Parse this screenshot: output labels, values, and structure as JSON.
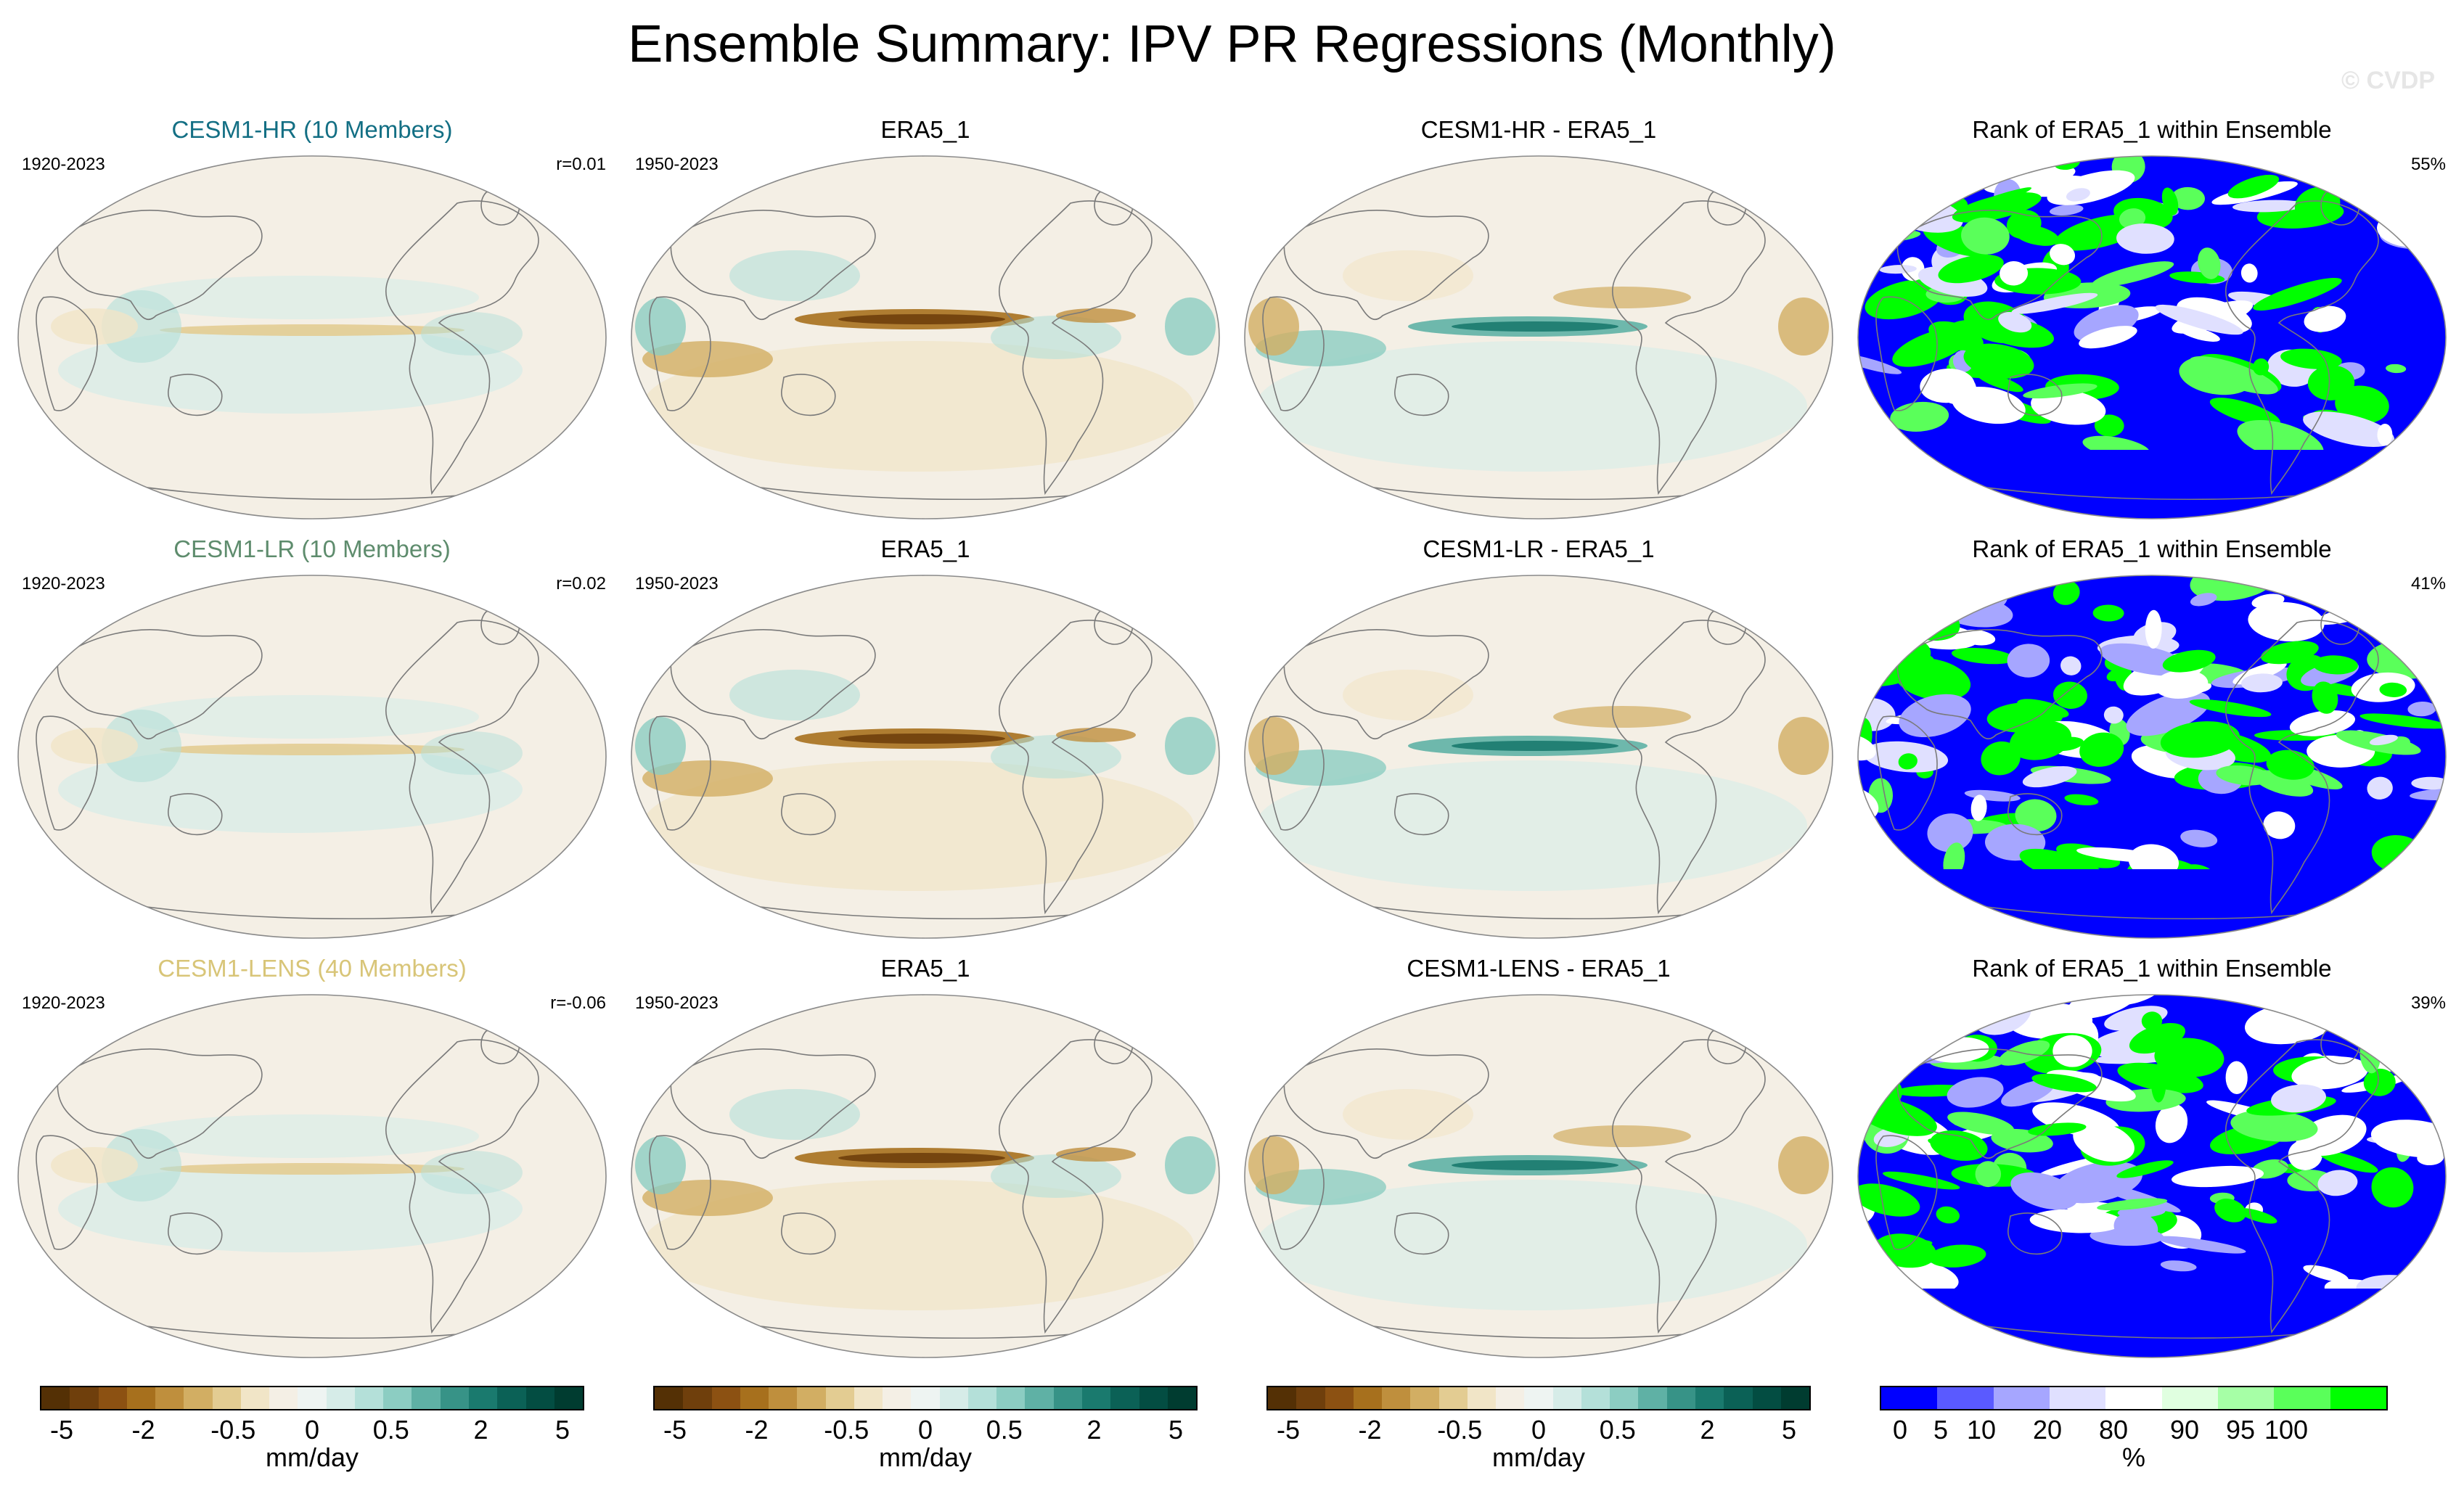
{
  "title": "Ensemble Summary: IPV PR Regressions (Monthly)",
  "watermark": "© CVDP",
  "colors": {
    "div": [
      "#543005",
      "#6f3f0c",
      "#8c5112",
      "#a7701d",
      "#bf8f3d",
      "#d2ae63",
      "#e3cc92",
      "#f1e5c7",
      "#f4efe5",
      "#eef4f2",
      "#d6ece8",
      "#b4e0d9",
      "#8ccdc2",
      "#5fb1a5",
      "#379387",
      "#1a7a6e",
      "#0b6156",
      "#034d42",
      "#003c30"
    ],
    "rank": [
      "#0000ff",
      "#5a5aff",
      "#a6a6ff",
      "#e0e0ff",
      "#ffffff",
      "#e0ffe0",
      "#a6ffa6",
      "#5aff5a",
      "#00ff00"
    ]
  },
  "rows": [
    {
      "model_title": "CESM1-HR (10 Members)",
      "model_color": "#136f84",
      "model_years": "1920-2023",
      "model_r": "r=0.01",
      "obs_title": "ERA5_1",
      "obs_years": "1950-2023",
      "diff_title": "CESM1-HR - ERA5_1",
      "rank_title": "Rank of ERA5_1 within Ensemble",
      "rank_pct": "55%"
    },
    {
      "model_title": "CESM1-LR (10 Members)",
      "model_color": "#5e8c6d",
      "model_years": "1920-2023",
      "model_r": "r=0.02",
      "obs_title": "ERA5_1",
      "obs_years": "1950-2023",
      "diff_title": "CESM1-LR - ERA5_1",
      "rank_title": "Rank of ERA5_1 within Ensemble",
      "rank_pct": "41%"
    },
    {
      "model_title": "CESM1-LENS (40 Members)",
      "model_color": "#d8c578",
      "model_years": "1920-2023",
      "model_r": "r=-0.06",
      "obs_title": "ERA5_1",
      "obs_years": "1950-2023",
      "diff_title": "CESM1-LENS - ERA5_1",
      "rank_title": "Rank of ERA5_1 within Ensemble",
      "rank_pct": "39%"
    }
  ],
  "colorbars": [
    {
      "ticks": [
        "-5",
        "-2",
        "-0.5",
        "0",
        "0.5",
        "2",
        "5"
      ],
      "units": "mm/day"
    },
    {
      "ticks": [
        "-5",
        "-2",
        "-0.5",
        "0",
        "0.5",
        "2",
        "5"
      ],
      "units": "mm/day"
    },
    {
      "ticks": [
        "-5",
        "-2",
        "-0.5",
        "0",
        "0.5",
        "2",
        "5"
      ],
      "units": "mm/day"
    },
    {
      "ticks": [
        "0",
        "5",
        "10",
        "20",
        "80",
        "90",
        "95",
        "100"
      ],
      "units": "%"
    }
  ]
}
